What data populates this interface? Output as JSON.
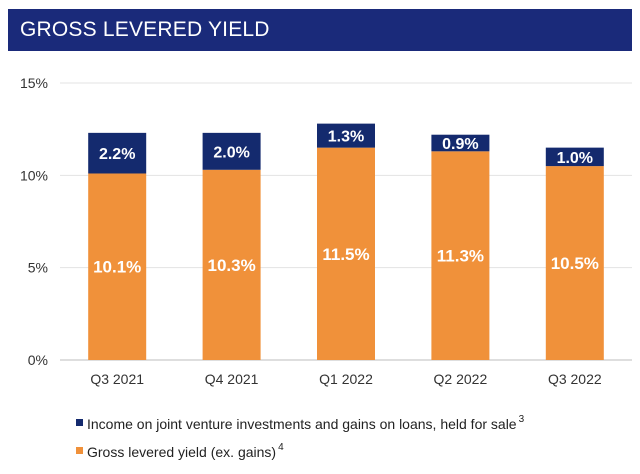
{
  "header": {
    "title": "GROSS LEVERED YIELD"
  },
  "chart_data": {
    "type": "bar",
    "stacked": true,
    "title": "GROSS LEVERED YIELD",
    "categories": [
      "Q3 2021",
      "Q4 2021",
      "Q1 2022",
      "Q2 2022",
      "Q3 2022"
    ],
    "series": [
      {
        "name": "Gross levered yield (ex. gains)",
        "footnote": "4",
        "color": "#f0913a",
        "values": [
          10.1,
          10.3,
          11.5,
          11.3,
          10.5
        ],
        "labels": [
          "10.1%",
          "10.3%",
          "11.5%",
          "11.3%",
          "10.5%"
        ]
      },
      {
        "name": "Income on joint venture investments and gains on loans, held for sale",
        "footnote": "3",
        "color": "#142a6e",
        "values": [
          2.2,
          2.0,
          1.3,
          0.9,
          1.0
        ],
        "labels": [
          "2.2%",
          "2.0%",
          "1.3%",
          "0.9%",
          "1.0%"
        ]
      }
    ],
    "y_ticks": [
      "0%",
      "5%",
      "10%",
      "15%"
    ],
    "y_tick_values": [
      0,
      5,
      10,
      15
    ],
    "ylim": [
      0,
      15
    ],
    "grid": true,
    "legend_position": "bottom-left"
  },
  "legend": {
    "items": [
      {
        "label": "Income on joint venture investments and gains on loans, held for sale",
        "footnote": "3",
        "color": "#142a6e"
      },
      {
        "label": "Gross levered yield (ex. gains)",
        "footnote": "4",
        "color": "#f0913a"
      }
    ]
  }
}
